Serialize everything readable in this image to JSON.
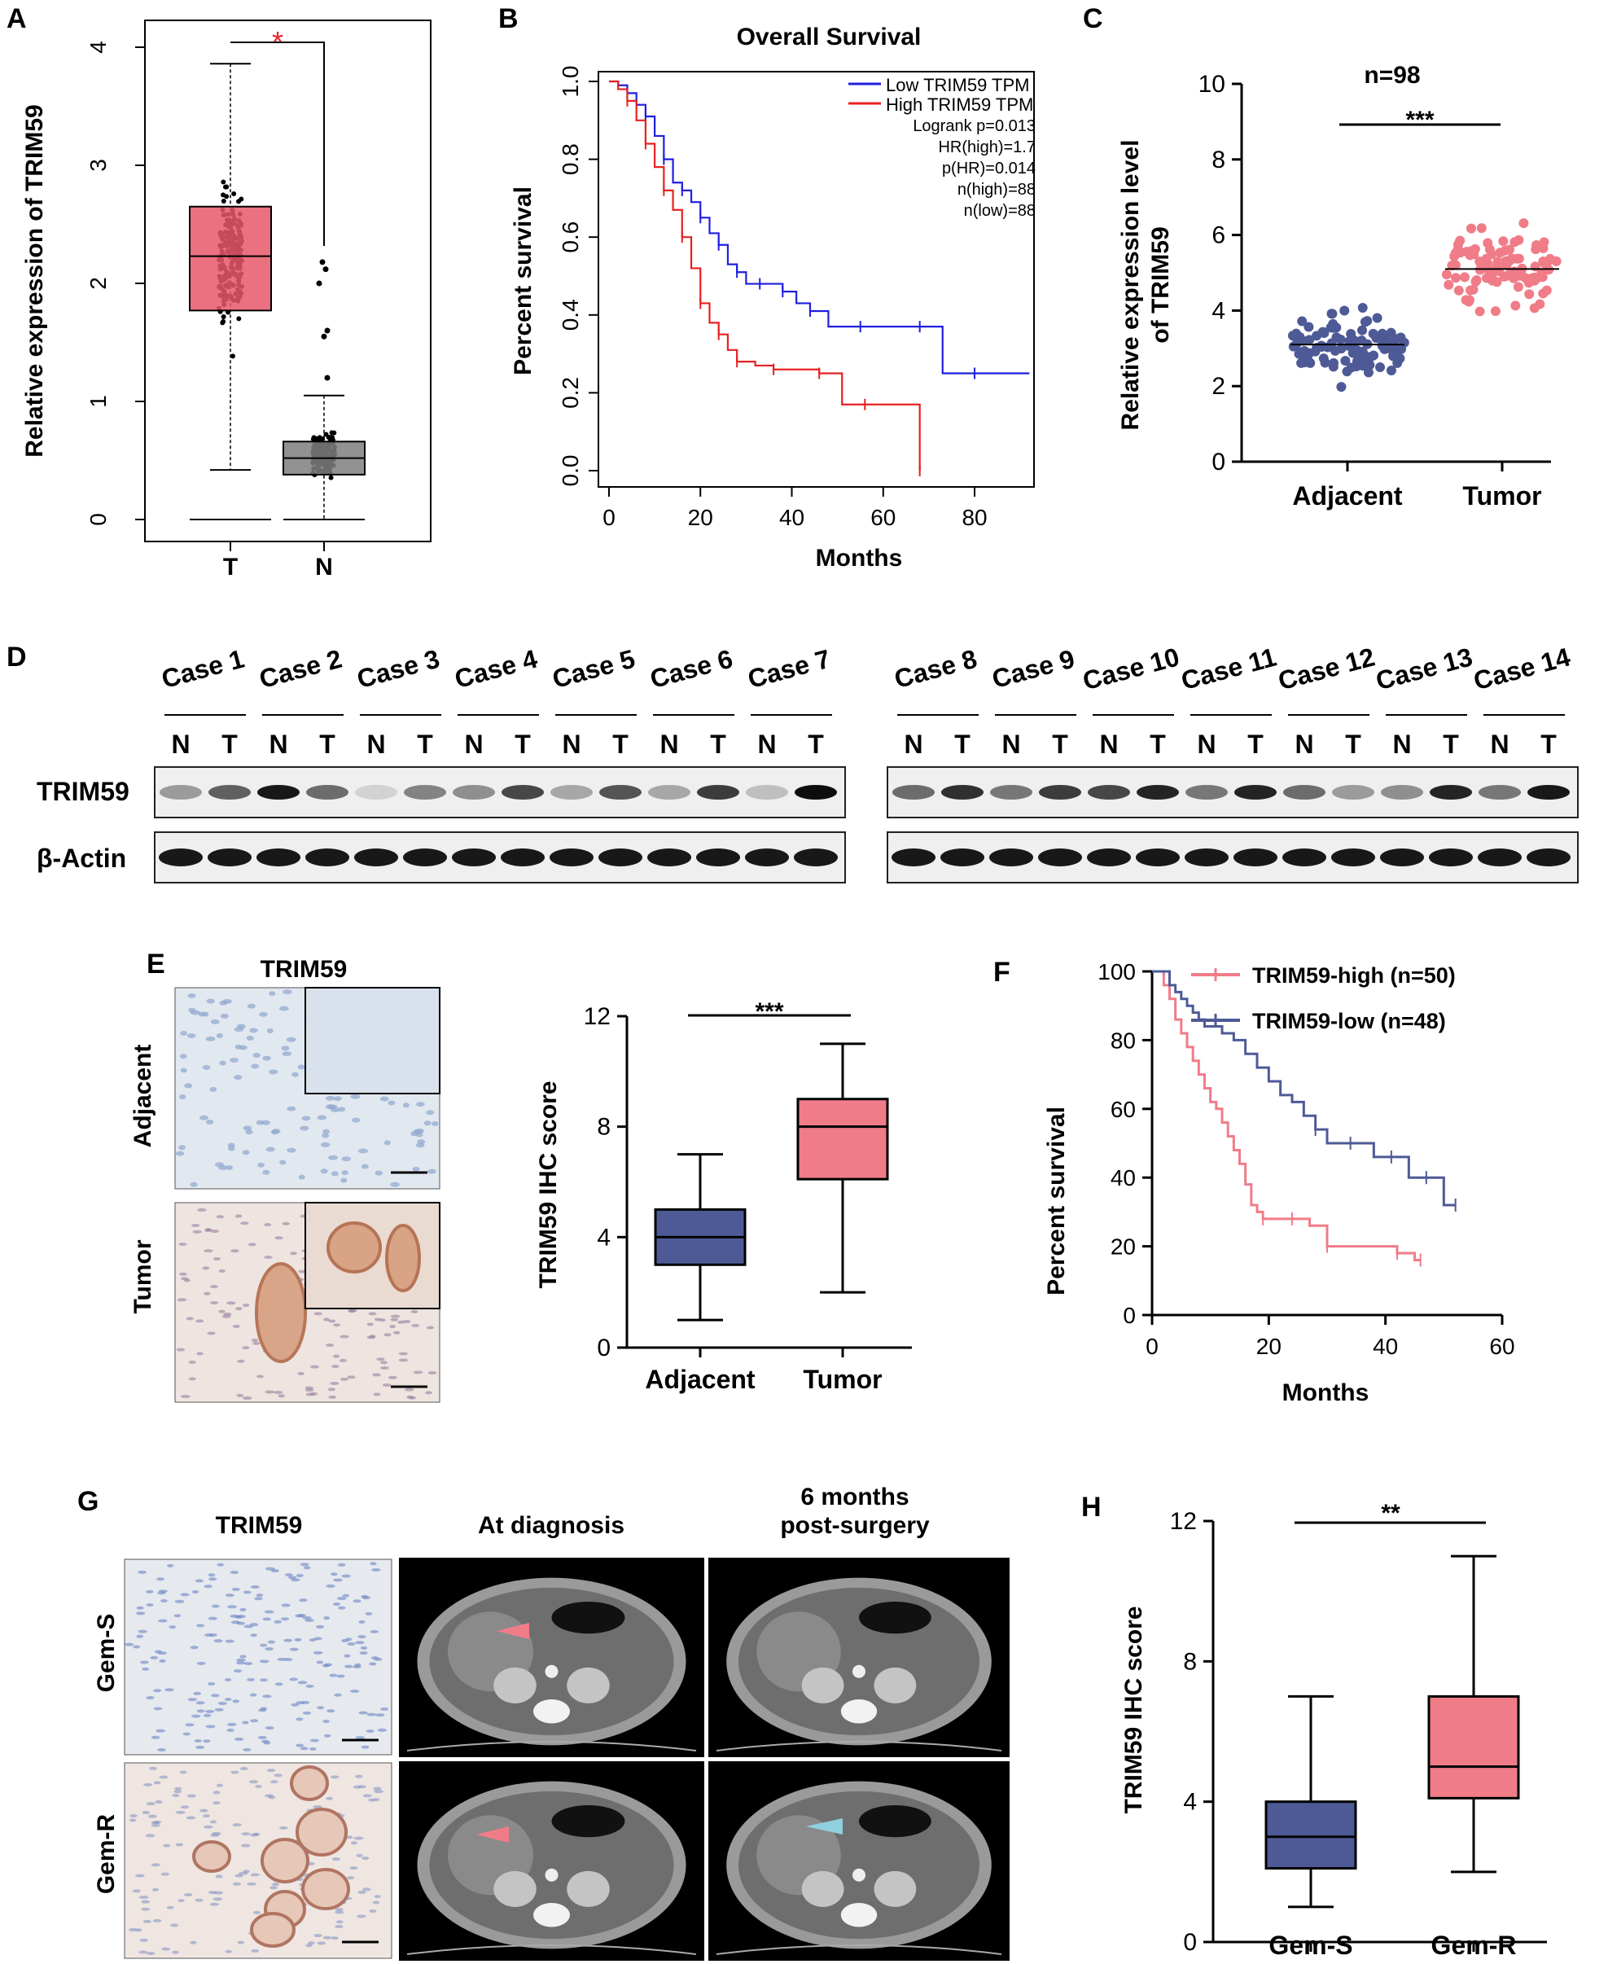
{
  "panels": {
    "a": "A",
    "b": "B",
    "c": "C",
    "d": "D",
    "e": "E",
    "f": "F",
    "g": "G",
    "h": "H"
  },
  "colors": {
    "red_box": "#e8586a",
    "pink_box": "#f07c88",
    "navy_box": "#4e5a96",
    "blue_line": "#1f1fe0",
    "red_line": "#e82020",
    "cyan_arrow": "#8fd0df"
  },
  "chart_data": [
    {
      "id": "A",
      "type": "box",
      "ylabel": "Relative expression of TRIM59",
      "categories": [
        "T",
        "N"
      ],
      "yticks": [
        "0",
        "1",
        "2",
        "3",
        "4"
      ],
      "ylim": [
        0,
        4.2
      ],
      "boxes": [
        {
          "name": "T",
          "min": 0.42,
          "q1": 1.77,
          "median": 2.23,
          "q3": 2.65,
          "max": 3.86
        },
        {
          "name": "N",
          "min": 0.0,
          "q1": 0.38,
          "median": 0.52,
          "q3": 0.66,
          "max": 1.05
        }
      ],
      "significance": "*"
    },
    {
      "id": "B",
      "type": "line",
      "title": "Overall Survival",
      "xlabel": "Months",
      "ylabel": "Percent survival",
      "xticks": [
        "0",
        "20",
        "40",
        "60",
        "80"
      ],
      "yticks": [
        "0.0",
        "0.2",
        "0.4",
        "0.6",
        "0.8",
        "1.0"
      ],
      "xlim": [
        0,
        93
      ],
      "ylim": [
        0,
        1.0
      ],
      "legend": [
        "Low TRIM59 TPM",
        "High TRIM59 TPM"
      ],
      "stats": [
        "Logrank p=0.013",
        "HR(high)=1.7",
        "p(HR)=0.014",
        "n(high)=88",
        "n(low)=88"
      ],
      "series": [
        {
          "name": "Low TRIM59 TPM",
          "x": [
            0,
            2,
            4,
            6,
            8,
            10,
            12,
            14,
            16,
            18,
            20,
            22,
            24,
            26,
            28,
            30,
            33,
            36,
            38,
            41,
            44,
            48,
            55,
            62,
            68,
            73,
            80,
            92
          ],
          "y": [
            1.0,
            0.99,
            0.97,
            0.94,
            0.91,
            0.86,
            0.8,
            0.74,
            0.72,
            0.69,
            0.65,
            0.61,
            0.58,
            0.53,
            0.51,
            0.48,
            0.48,
            0.48,
            0.46,
            0.43,
            0.41,
            0.37,
            0.37,
            0.37,
            0.37,
            0.25,
            0.25,
            0.25
          ]
        },
        {
          "name": "High TRIM59 TPM",
          "x": [
            0,
            2,
            4,
            6,
            8,
            10,
            12,
            14,
            16,
            18,
            20,
            22,
            24,
            26,
            28,
            32,
            36,
            42,
            46,
            51,
            56,
            62,
            68
          ],
          "y": [
            1.0,
            0.98,
            0.95,
            0.9,
            0.84,
            0.78,
            0.72,
            0.67,
            0.6,
            0.52,
            0.43,
            0.38,
            0.35,
            0.31,
            0.28,
            0.27,
            0.26,
            0.26,
            0.25,
            0.17,
            0.17,
            0.17,
            0.0
          ]
        }
      ]
    },
    {
      "id": "C",
      "type": "scatter",
      "title": "n=98",
      "ylabel_line1": "Relative expression level",
      "ylabel_line2": "of TRIM59",
      "categories": [
        "Adjacent",
        "Tumor"
      ],
      "yticks": [
        "0",
        "2",
        "4",
        "6",
        "8",
        "10"
      ],
      "ylim": [
        0,
        10
      ],
      "means": [
        3.1,
        5.1
      ],
      "significance": "***"
    },
    {
      "id": "D",
      "type": "blot",
      "group1_cases": [
        "Case 1",
        "Case 2",
        "Case 3",
        "Case 4",
        "Case 5",
        "Case 6",
        "Case 7"
      ],
      "group2_cases": [
        "Case 8",
        "Case 9",
        "Case 10",
        "Case 11",
        "Case 12",
        "Case 13",
        "Case 14"
      ],
      "lane_labels": [
        "N",
        "T"
      ],
      "rows": [
        "TRIM59",
        "β-Actin"
      ]
    },
    {
      "id": "E",
      "type": "box",
      "image_title": "TRIM59",
      "row_labels": [
        "Adjacent",
        "Tumor"
      ],
      "ylabel": "TRIM59 IHC score",
      "categories": [
        "Adjacent",
        "Tumor"
      ],
      "yticks": [
        "0",
        "4",
        "8",
        "12"
      ],
      "ylim": [
        0,
        12
      ],
      "boxes": [
        {
          "name": "Adjacent",
          "min": 1,
          "q1": 3,
          "median": 4,
          "q3": 5,
          "max": 7
        },
        {
          "name": "Tumor",
          "min": 2,
          "q1": 6.1,
          "median": 8,
          "q3": 9,
          "max": 11
        }
      ],
      "significance": "***"
    },
    {
      "id": "F",
      "type": "line",
      "xlabel": "Months",
      "ylabel": "Percent survival",
      "xticks": [
        "0",
        "20",
        "40",
        "60"
      ],
      "yticks": [
        "0",
        "20",
        "40",
        "60",
        "80",
        "100"
      ],
      "xlim": [
        0,
        60
      ],
      "ylim": [
        0,
        100
      ],
      "legend": [
        "TRIM59-high (n=50)",
        "TRIM59-low (n=48)"
      ],
      "series": [
        {
          "name": "TRIM59-high (n=50)",
          "x": [
            0,
            2,
            3,
            4,
            5,
            6,
            7,
            8,
            9,
            10,
            11,
            12,
            13,
            14,
            15,
            16,
            17,
            18,
            19,
            21,
            24,
            27,
            30,
            36,
            42,
            45,
            46
          ],
          "y": [
            100,
            96,
            92,
            86,
            82,
            78,
            74,
            70,
            66,
            62,
            60,
            56,
            52,
            48,
            44,
            38,
            32,
            30,
            28,
            28,
            28,
            26,
            20,
            20,
            18,
            16,
            16
          ]
        },
        {
          "name": "TRIM59-low (n=48)",
          "x": [
            0,
            2,
            3,
            4,
            5,
            6,
            7,
            8,
            9,
            10,
            12,
            14,
            16,
            18,
            20,
            22,
            24,
            26,
            28,
            30,
            34,
            38,
            41,
            44,
            47,
            50,
            52
          ],
          "y": [
            100,
            100,
            96,
            94,
            92,
            90,
            88,
            86,
            84,
            84,
            82,
            80,
            76,
            72,
            68,
            64,
            62,
            58,
            54,
            50,
            50,
            46,
            46,
            40,
            40,
            32,
            32
          ]
        }
      ]
    },
    {
      "id": "G",
      "type": "image",
      "col_labels": [
        "TRIM59",
        "At diagnosis",
        "6 months",
        "post-surgery"
      ],
      "row_labels": [
        "Gem-S",
        "Gem-R"
      ]
    },
    {
      "id": "H",
      "type": "box",
      "ylabel": "TRIM59 IHC score",
      "categories": [
        "Gem-S",
        "Gem-R"
      ],
      "yticks": [
        "0",
        "4",
        "8",
        "12"
      ],
      "ylim": [
        0,
        12
      ],
      "boxes": [
        {
          "name": "Gem-S",
          "min": 1,
          "q1": 2.1,
          "median": 3,
          "q3": 4,
          "max": 7
        },
        {
          "name": "Gem-R",
          "min": 2,
          "q1": 4.1,
          "median": 5,
          "q3": 7,
          "max": 11
        }
      ],
      "significance": "**"
    }
  ]
}
